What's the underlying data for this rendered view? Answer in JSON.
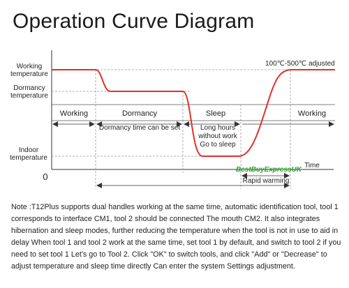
{
  "title": "Operation Curve Diagram",
  "axis_labels": {
    "working_temperature": [
      "Working",
      "temperature"
    ],
    "dormancy_temperature": [
      "Dormancy",
      "temperature"
    ],
    "indoor_temperature": [
      "Indoor",
      "temperature"
    ],
    "origin": "0",
    "time": "Time"
  },
  "temperature_range": "100℃-500℃ adjusted",
  "phases": {
    "working_start": "Working",
    "dormancy": "Dormancy",
    "sleep": "Sleep",
    "working_end": "Working"
  },
  "annotations": {
    "dormancy_time": "Dormancy time can be set",
    "long_hours": [
      "Long hours",
      "without work",
      "Go to sleep"
    ],
    "rapid_warming": "Rapid warming"
  },
  "watermark": "BestBuyExpressUK",
  "colors": {
    "curve": "#e0302a",
    "dashed": "#999999",
    "axis": "#333333",
    "watermark": "#2ca02c"
  },
  "note": "Note :T12Plus supports dual handles working at the same time, automatic identification tool, tool 1 corresponds to interface CM1, tool 2 should be connected The mouth CM2. It also integrates hibernation and sleep modes, further reducing the temperature when the tool is not in use to aid in delay When tool 1 and tool 2 work at the same time, set tool 1 by default, and switch to tool 2 if you need to set tool 1 Let's go to Tool 2. Click \"OK\" to switch tools, and click \"Add\" or \"Decrease\" to adjust temperature and sleep time directly Can enter the system Settings adjustment."
}
